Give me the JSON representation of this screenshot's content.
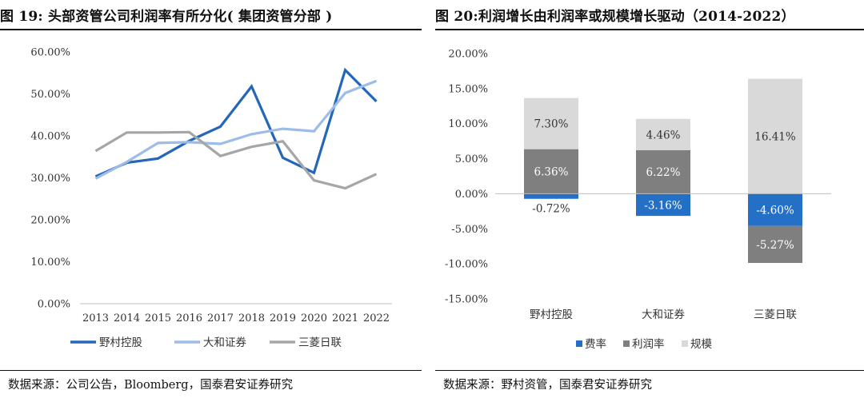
{
  "figures": [
    {
      "title": "图 19: 头部资管公司利润率有所分化( 集团资管分部 )",
      "source": "数据来源：公司公告，Bloomberg，国泰君安证券研究"
    },
    {
      "title": "图 20:利润增长由利润率或规模增长驱动（2014-2022）",
      "source": "数据来源：野村资管，国泰君安证券研究"
    }
  ],
  "chart_data": [
    {
      "type": "line",
      "title": "",
      "x": [
        "2013",
        "2014",
        "2015",
        "2016",
        "2017",
        "2018",
        "2019",
        "2020",
        "2021",
        "2022"
      ],
      "ylim": [
        0,
        60
      ],
      "yticks": [
        0,
        10,
        20,
        30,
        40,
        50,
        60
      ],
      "ytick_labels": [
        "0.00%",
        "10.00%",
        "20.00%",
        "30.00%",
        "40.00%",
        "50.00%",
        "60.00%"
      ],
      "grid": false,
      "legend_position": "bottom",
      "series": [
        {
          "name": "野村控股",
          "color": "#2466b9",
          "values": [
            30.3,
            33.6,
            34.6,
            38.8,
            42.2,
            51.8,
            34.8,
            31.2,
            55.7,
            48.2
          ]
        },
        {
          "name": "大和证券",
          "color": "#9dbce8",
          "values": [
            29.8,
            33.8,
            38.3,
            38.5,
            38.1,
            40.4,
            41.7,
            41.1,
            50.2,
            53.1
          ]
        },
        {
          "name": "三菱日联",
          "color": "#a6a6a6",
          "values": [
            36.4,
            40.8,
            40.8,
            40.9,
            35.2,
            37.4,
            38.7,
            29.4,
            27.5,
            30.9
          ]
        }
      ]
    },
    {
      "type": "bar",
      "stacked": true,
      "title": "",
      "categories": [
        "野村控股",
        "大和证券",
        "三菱日联"
      ],
      "ylim": [
        -15,
        20
      ],
      "yticks": [
        -15,
        -10,
        -5,
        0,
        5,
        10,
        15,
        20
      ],
      "ytick_labels": [
        "-15.00%",
        "-10.00%",
        "-5.00%",
        "0.00%",
        "5.00%",
        "10.00%",
        "15.00%",
        "20.00%"
      ],
      "legend_position": "bottom",
      "series": [
        {
          "name": "费率",
          "color": "#2470c7",
          "values": [
            -0.72,
            -3.16,
            -4.6
          ],
          "labels": [
            "-0.72%",
            "-3.16%",
            "-4.60%"
          ]
        },
        {
          "name": "利润率",
          "color": "#7f7f7f",
          "values": [
            6.36,
            6.22,
            -5.27
          ],
          "labels": [
            "6.36%",
            "6.22%",
            "-5.27%"
          ]
        },
        {
          "name": "规模",
          "color": "#d9d9d9",
          "values": [
            7.3,
            4.46,
            16.41
          ],
          "labels": [
            "7.30%",
            "4.46%",
            "16.41%"
          ]
        }
      ]
    }
  ]
}
